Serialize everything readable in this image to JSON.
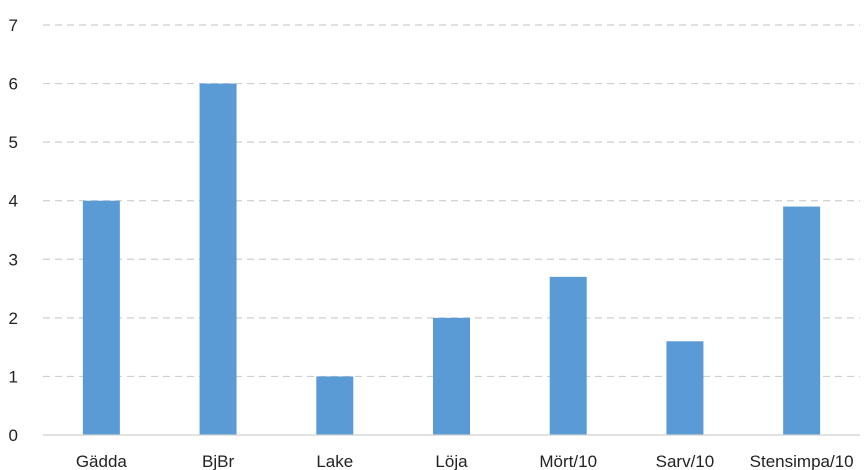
{
  "chart_data": {
    "type": "bar",
    "title": "",
    "xlabel": "",
    "ylabel": "",
    "categories": [
      "Gädda",
      "BjBr",
      "Lake",
      "Löja",
      "Mört/10",
      "Sarv/10",
      "Stensimpa/10"
    ],
    "values": [
      4,
      6,
      1,
      2,
      2.7,
      1.6,
      3.9
    ],
    "ylim": [
      0,
      7
    ],
    "yticks": [
      0,
      1,
      2,
      3,
      4,
      5,
      6,
      7
    ],
    "grid": true,
    "legend": "none",
    "colors": {
      "bar": "#5B9BD5",
      "grid": "#cfcfcf",
      "text": "#222222"
    }
  }
}
